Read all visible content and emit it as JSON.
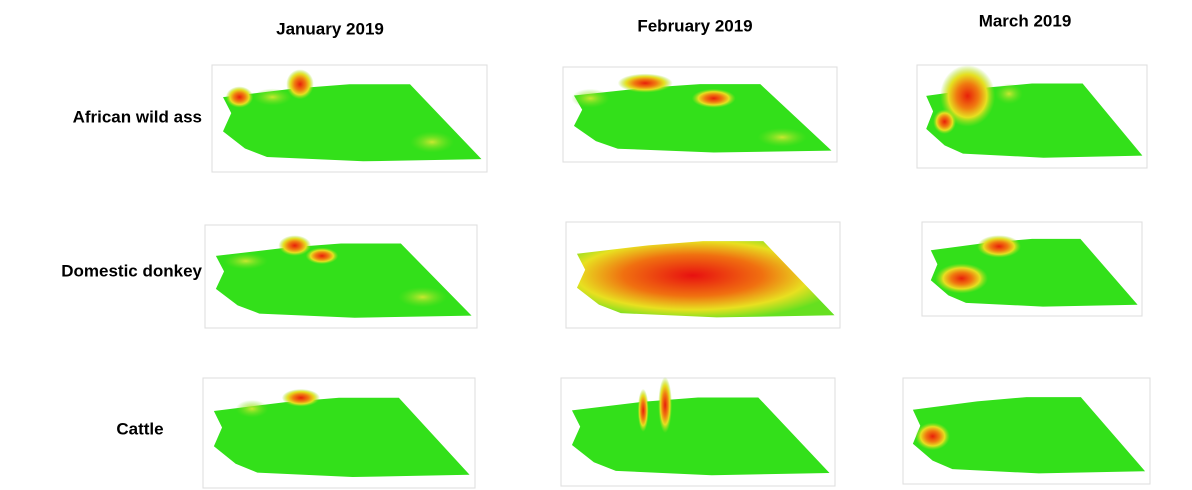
{
  "columns": [
    "January 2019",
    "February 2019",
    "March 2019"
  ],
  "rows": [
    "African wild ass",
    "Domestic donkey",
    "Cattle"
  ]
}
